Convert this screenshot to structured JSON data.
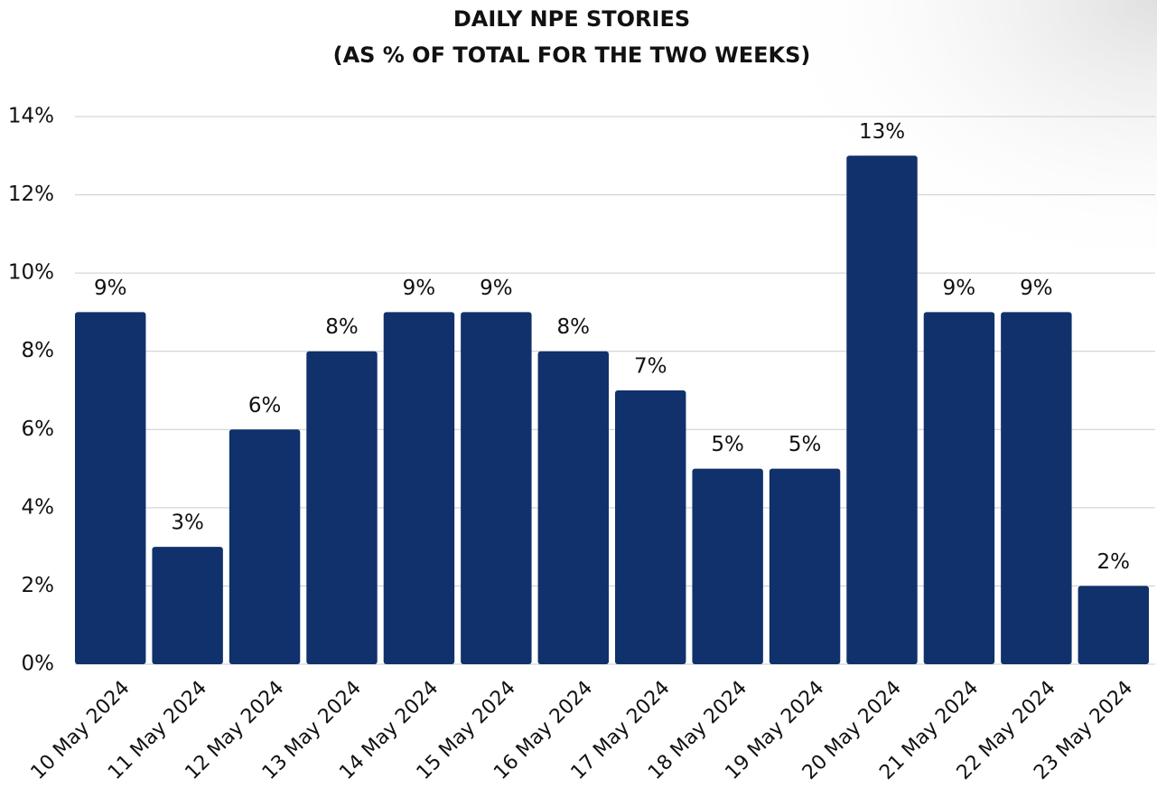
{
  "chart_data": {
    "type": "bar",
    "title": "DAILY NPE STORIES",
    "subtitle": "(AS % OF TOTAL FOR THE TWO WEEKS)",
    "categories": [
      "10 May 2024",
      "11 May 2024",
      "12 May 2024",
      "13 May 2024",
      "14 May 2024",
      "15 May 2024",
      "16 May 2024",
      "17 May 2024",
      "18 May 2024",
      "19 May 2024",
      "20 May 2024",
      "21 May 2024",
      "22 May 2024",
      "23 May 2024"
    ],
    "values": [
      9,
      3,
      6,
      8,
      9,
      9,
      8,
      7,
      5,
      5,
      13,
      9,
      9,
      2
    ],
    "value_labels": [
      "9%",
      "3%",
      "6%",
      "8%",
      "9%",
      "9%",
      "8%",
      "7%",
      "5%",
      "5%",
      "13%",
      "9%",
      "9%",
      "2%"
    ],
    "color": "#10316b",
    "ylim": [
      0,
      14
    ],
    "yticks": [
      {
        "value": 0,
        "label": "0%"
      },
      {
        "value": 2,
        "label": "2%"
      },
      {
        "value": 4,
        "label": "4%"
      },
      {
        "value": 6,
        "label": "6%"
      },
      {
        "value": 8,
        "label": "8%"
      },
      {
        "value": 10,
        "label": "10%"
      },
      {
        "value": 12,
        "label": "12%"
      },
      {
        "value": 14,
        "label": "14%"
      }
    ],
    "grid": true
  }
}
